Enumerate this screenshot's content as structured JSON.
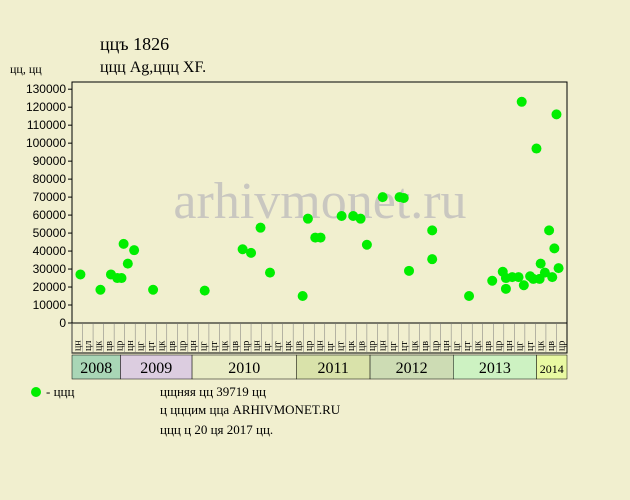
{
  "chart_data": {
    "type": "scatter",
    "title": "ццъ 1826",
    "subtitle": "ццц Ag,ццц XF.",
    "y_label": "цц, цц",
    "watermark": "arhivmonet.ru",
    "notes": [
      "цщняя цц 39719 цц",
      "ц цццим цца ARHIVMONET.RU",
      "ццц ц 20 ця 2017 цц."
    ],
    "xlim": [
      0,
      47
    ],
    "ylim": [
      0,
      134000
    ],
    "yticks": [
      0,
      10000,
      20000,
      30000,
      40000,
      50000,
      60000,
      70000,
      80000,
      90000,
      100000,
      110000,
      120000,
      130000
    ],
    "grid": false,
    "x_labels": [
      "цн",
      "цл",
      "цк",
      "цв",
      "цр",
      "цн",
      "цг",
      "цт",
      "цк",
      "цв",
      "цр",
      "цн",
      "цг",
      "цт",
      "цк",
      "цв",
      "цр",
      "цн",
      "цг",
      "цт",
      "цк",
      "цв",
      "цр",
      "цн",
      "цг",
      "цт",
      "цк",
      "цв",
      "цр",
      "цн",
      "цг",
      "цт",
      "цк",
      "цв",
      "цр",
      "цн",
      "цг",
      "цт",
      "цк",
      "цв",
      "цр",
      "цн",
      "цг",
      "цт",
      "цк",
      "цв",
      "цр"
    ],
    "years": [
      {
        "label": "2008",
        "from": 0,
        "to": 4.6,
        "color": "#a9d6b6"
      },
      {
        "label": "2009",
        "from": 4.6,
        "to": 11.4,
        "color": "#dccde0"
      },
      {
        "label": "2010",
        "from": 11.4,
        "to": 21.3,
        "color": "#e9ecc6"
      },
      {
        "label": "2011",
        "from": 21.3,
        "to": 28.3,
        "color": "#d9e2aa"
      },
      {
        "label": "2012",
        "from": 28.3,
        "to": 36.2,
        "color": "#cddcb4"
      },
      {
        "label": "2013",
        "from": 36.2,
        "to": 44.1,
        "color": "#cdf2c2"
      },
      {
        "label": "2014",
        "from": 44.1,
        "to": 47,
        "color": "#e9f9a2"
      }
    ],
    "series": [
      {
        "name": "- ццц",
        "color": "#00ee00",
        "x": [
          0.8,
          2.7,
          3.7,
          4.3,
          4.7,
          4.9,
          5.3,
          5.9,
          7.7,
          12.6,
          16.2,
          17.0,
          17.9,
          18.8,
          21.9,
          22.4,
          23.1,
          23.6,
          25.6,
          26.7,
          27.4,
          28.0,
          29.5,
          31.1,
          31.5,
          32.0,
          34.2,
          34.2,
          37.7,
          39.9,
          40.9,
          41.2,
          41.2,
          41.8,
          42.4,
          42.7,
          42.9,
          43.5,
          43.8,
          44.1,
          44.4,
          44.5,
          44.9,
          45.3,
          45.6,
          45.8,
          46.0,
          46.2
        ],
        "values": [
          27000,
          18500,
          27000,
          25000,
          25000,
          44000,
          33000,
          40500,
          18500,
          18000,
          41000,
          39000,
          53000,
          28000,
          15000,
          58000,
          47500,
          47500,
          59500,
          59500,
          58000,
          43500,
          70000,
          70000,
          69500,
          29000,
          51500,
          35500,
          15000,
          23500,
          28500,
          19000,
          25000,
          25500,
          25500,
          123000,
          21000,
          26000,
          24500,
          97000,
          24500,
          33000,
          28000,
          51500,
          25500,
          41500,
          116000,
          30500
        ]
      }
    ]
  }
}
